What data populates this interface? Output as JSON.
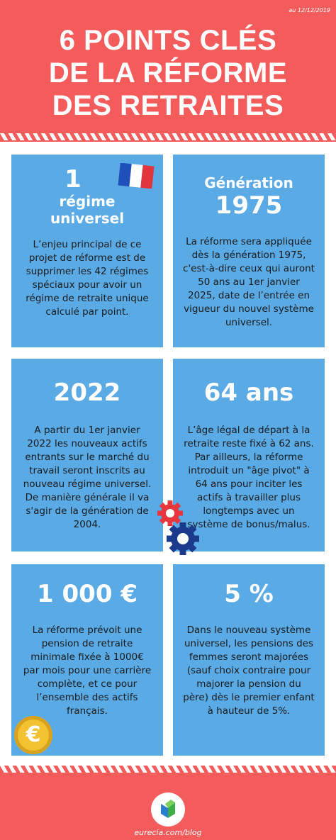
{
  "header": {
    "date": "au 12/12/2019",
    "title_line1": "6 POINTS CLÉS",
    "title_line2": "DE LA RÉFORME",
    "title_line3": "DES RETRAITES"
  },
  "cards": [
    {
      "big_line1": "1",
      "big_line2": "régime",
      "big_line3": "universel",
      "text": "L’enjeu principal de ce projet de réforme est de supprimer les 42 régimes spéciaux pour avoir un régime de retraite unique calculé par point."
    },
    {
      "big_line1": "Génération",
      "big_line2": "1975",
      "text": "La réforme sera appliquée dès la génération 1975, c'est-à-dire ceux qui auront 50 ans au 1er janvier 2025, date de l’entrée en vigueur du nouvel système universel."
    },
    {
      "big": "2022",
      "text": "A partir du 1er janvier 2022 les nouveaux actifs entrants sur le marché du travail seront inscrits au nouveau régime universel. De manière générale il va s'agir de la génération de 2004."
    },
    {
      "big": "64 ans",
      "text": "L’âge légal de départ à la retraite reste fixé à 62 ans. Par ailleurs, la réforme introduit un \"âge pivot\" à 64 ans pour inciter les actifs à travailler plus longtemps avec un système de bonus/malus."
    },
    {
      "big": "1 000 €",
      "text": "La réforme prévoit une pension de retraite minimale fixée à 1000€ par mois pour une carrière complète, et ce pour l’ensemble des actifs français."
    },
    {
      "big": "5 %",
      "text": "Dans le nouveau système universel, les pensions des femmes seront majorées (sauf choix contraire pour majorer la pension du père) dès le premier enfant à hauteur de 5%."
    }
  ],
  "decor": {
    "euro_coin_symbol": "€",
    "colors": {
      "header_red": "#f45c5c",
      "card_blue": "#5aaae6",
      "gear_red": "#e8373c",
      "gear_navy": "#1c3a8c",
      "coin_gold": "#f2c230"
    },
    "icons": [
      "france-flag-icon",
      "gears-icon",
      "euro-coin-icon",
      "eurecia-logo-icon"
    ]
  },
  "footer": {
    "url": "eurecia.com/blog"
  }
}
